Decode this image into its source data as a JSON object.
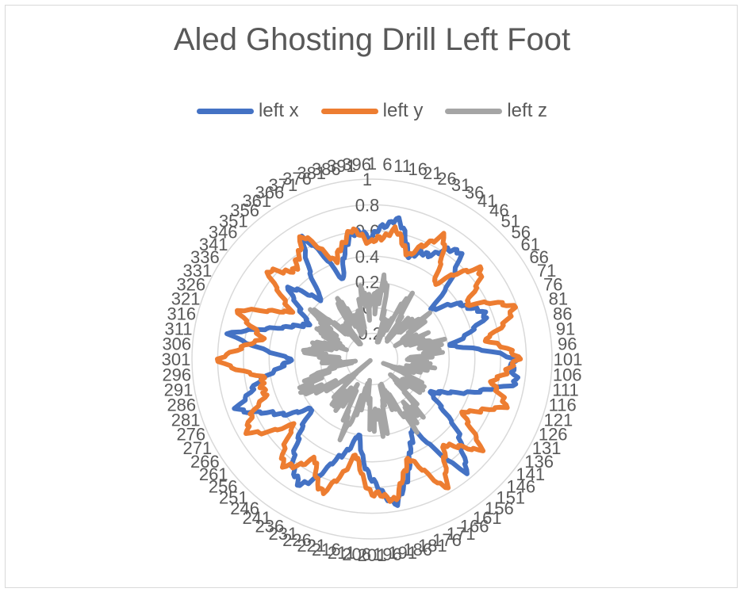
{
  "chart_data": {
    "type": "radar",
    "title": "Aled Ghosting Drill Left Foot",
    "legend_position": "top",
    "grid": true,
    "rlim": [
      -0.4,
      1.0
    ],
    "radial_ticks": [
      "-0.2",
      "0",
      "0.2",
      "0.4",
      "0.6",
      "0.8",
      "1"
    ],
    "categories_count": 400,
    "category_label_step": 5,
    "series": [
      {
        "name": "left x",
        "color": "#4472C4",
        "anchor_angles_deg": [
          0,
          10,
          20,
          30,
          40,
          50,
          60,
          70,
          80,
          90,
          100,
          110,
          120,
          130,
          140,
          150,
          160,
          170,
          180,
          190,
          200,
          210,
          220,
          230,
          240,
          250,
          260,
          270,
          280,
          290,
          300,
          310,
          320,
          330,
          340,
          350
        ],
        "anchor_values": [
          0.55,
          0.72,
          0.45,
          0.55,
          0.7,
          0.2,
          0.45,
          0.55,
          0.2,
          0.7,
          0.72,
          0.35,
          0.1,
          0.45,
          0.75,
          0.2,
          0.45,
          0.75,
          0.55,
          0.2,
          0.45,
          0.75,
          0.55,
          0.2,
          0.45,
          0.72,
          0.45,
          0.2,
          0.72,
          0.3,
          0.15,
          0.45,
          0.2,
          0.7,
          0.25,
          0.6
        ]
      },
      {
        "name": "left y",
        "color": "#ED7D31",
        "anchor_angles_deg": [
          0,
          10,
          20,
          30,
          40,
          50,
          60,
          70,
          80,
          90,
          100,
          110,
          120,
          130,
          140,
          150,
          160,
          170,
          180,
          190,
          200,
          210,
          220,
          230,
          240,
          250,
          260,
          270,
          280,
          290,
          300,
          310,
          320,
          330,
          340,
          350
        ],
        "anchor_values": [
          0.5,
          0.62,
          0.45,
          0.72,
          0.35,
          0.72,
          0.45,
          0.8,
          0.5,
          0.75,
          0.55,
          0.7,
          0.4,
          0.7,
          0.45,
          0.75,
          0.4,
          0.7,
          0.65,
          0.35,
          0.72,
          0.5,
          0.7,
          0.4,
          0.75,
          0.5,
          0.45,
          0.8,
          0.45,
          0.7,
          0.3,
          0.65,
          0.5,
          0.7,
          0.4,
          0.62
        ]
      },
      {
        "name": "left z",
        "color": "#A5A5A5",
        "anchor_angles_deg": [
          0,
          10,
          20,
          30,
          40,
          50,
          60,
          70,
          80,
          90,
          100,
          110,
          120,
          130,
          140,
          150,
          160,
          170,
          180,
          190,
          200,
          210,
          220,
          230,
          240,
          250,
          260,
          270,
          280,
          290,
          300,
          310,
          320,
          330,
          340,
          350
        ],
        "anchor_values": [
          0.05,
          0.18,
          -0.25,
          0.1,
          -0.15,
          0.08,
          -0.1,
          0.0,
          0.1,
          -0.05,
          0.0,
          -0.2,
          0.02,
          -0.15,
          0.12,
          0.12,
          -0.18,
          0.1,
          0.05,
          -0.22,
          0.18,
          -0.1,
          0.05,
          -0.25,
          0.1,
          0.15,
          -0.18,
          -0.05,
          0.08,
          -0.1,
          0.0,
          0.12,
          -0.2,
          0.08,
          -0.15,
          0.08
        ]
      }
    ]
  }
}
